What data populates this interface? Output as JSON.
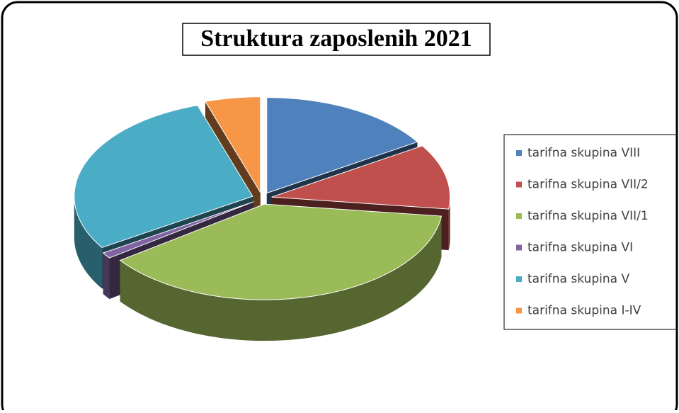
{
  "chart_data": {
    "type": "pie",
    "title": "Struktura zaposlenih 2021",
    "categories": [
      "tarifna skupina VIII",
      "tarifna skupina VII/2",
      "tarifna skupina VII/1",
      "tarifna skupina VI",
      "tarifna skupina V",
      "tarifna skupina I-IV"
    ],
    "values": [
      16,
      11,
      38,
      1,
      29,
      5
    ],
    "colors": [
      "#4f81bd",
      "#c0504d",
      "#9bbb59",
      "#8064a2",
      "#4bacc6",
      "#f79646"
    ],
    "legend": "right"
  }
}
